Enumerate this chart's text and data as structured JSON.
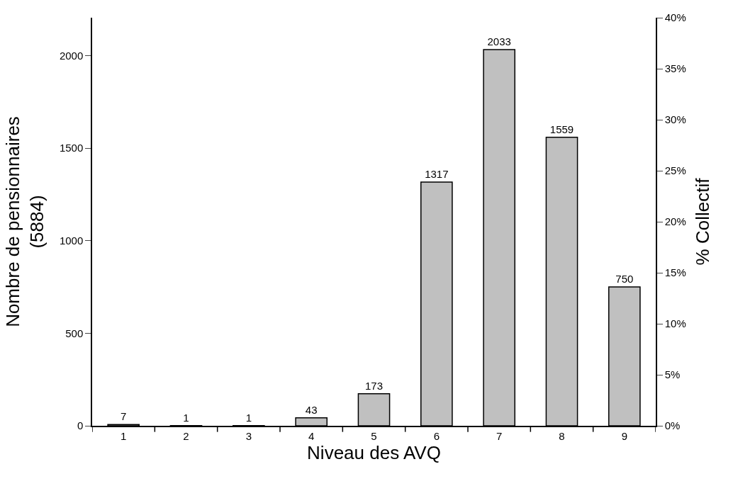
{
  "chart_data": {
    "type": "bar",
    "xlabel": "Niveau des AVQ",
    "ylabel": "Nombre de pensionnaires\n(5884)",
    "y2label": "% Collectif",
    "categories": [
      "1",
      "2",
      "3",
      "4",
      "5",
      "6",
      "7",
      "8",
      "9"
    ],
    "values": [
      7,
      1,
      1,
      43,
      173,
      1317,
      2033,
      1559,
      750
    ],
    "color": "#c0c0c0",
    "data_labels": true,
    "ylim": [
      0,
      2205
    ],
    "yticks": [
      0,
      500,
      1000,
      1500,
      2000
    ],
    "y2lim": [
      0,
      40
    ],
    "y2ticks": [
      {
        "value": 0,
        "label": "0%"
      },
      {
        "value": 5,
        "label": "5%"
      },
      {
        "value": 10,
        "label": "10%"
      },
      {
        "value": 15,
        "label": "15%"
      },
      {
        "value": 20,
        "label": "20%"
      },
      {
        "value": 25,
        "label": "25%"
      },
      {
        "value": 30,
        "label": "30%"
      },
      {
        "value": 35,
        "label": "35%"
      },
      {
        "value": 40,
        "label": "40%"
      }
    ]
  }
}
